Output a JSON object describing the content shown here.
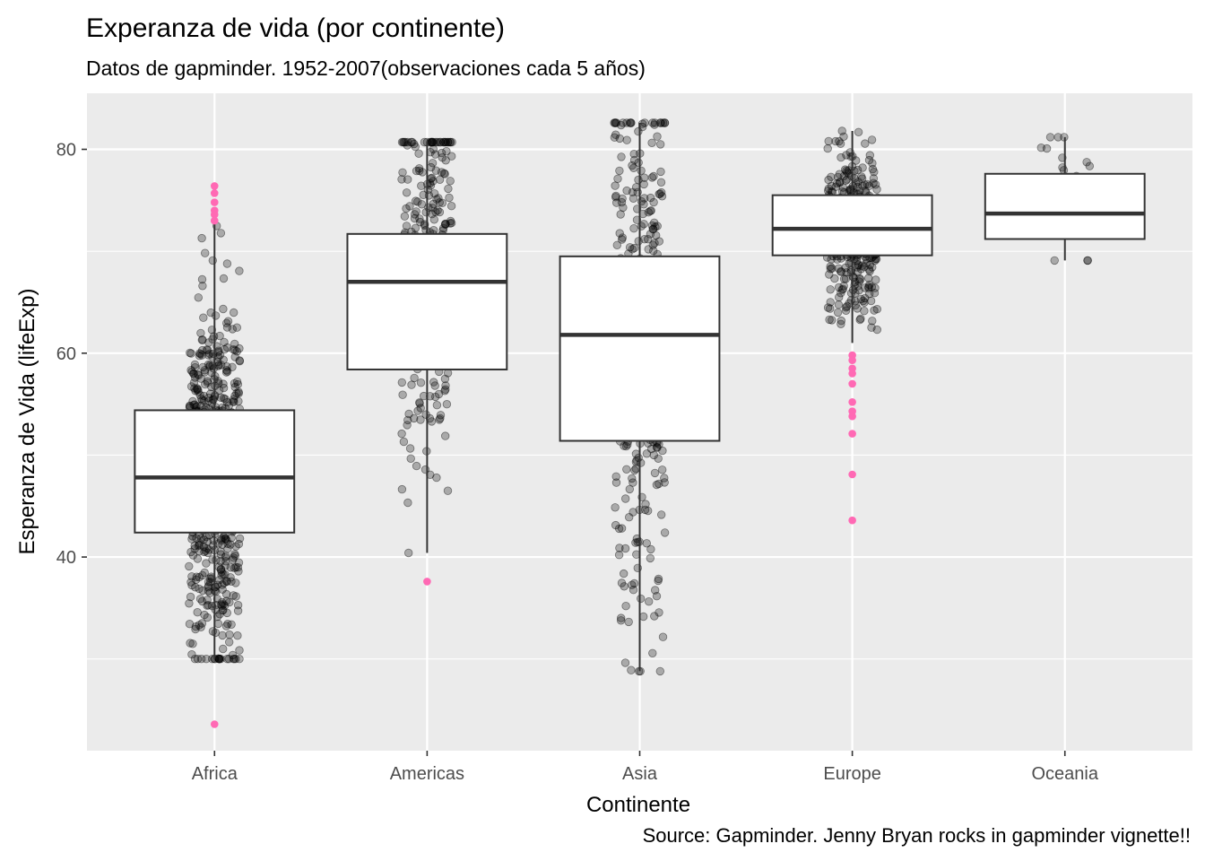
{
  "chart_data": {
    "type": "boxplot",
    "title": "Experanza de vida (por continente)",
    "subtitle": "Datos de gapminder. 1952-2007(observaciones cada 5 años)",
    "xlabel": "Continente",
    "ylabel": "Esperanza de Vida (lifeExp)",
    "caption": "Source: Gapminder. Jenny Bryan rocks in gapminder vignette!!",
    "categories": [
      "Africa",
      "Americas",
      "Asia",
      "Europe",
      "Oceania"
    ],
    "ylim": [
      21,
      85.5
    ],
    "yticks": [
      40,
      60,
      80
    ],
    "grid": true,
    "colors": {
      "panel_bg": "#ebebeb",
      "grid": "#ffffff",
      "box_fill": "#ffffff",
      "box_line": "#333333",
      "points": "#000000",
      "outliers": "#ff69b4"
    },
    "boxes": [
      {
        "category": "Africa",
        "q1": 42.4,
        "median": 47.8,
        "q3": 54.4,
        "whisker_low": 30.0,
        "whisker_high": 72.8,
        "n_points": 624
      },
      {
        "category": "Americas",
        "q1": 58.4,
        "median": 67.0,
        "q3": 71.7,
        "whisker_low": 40.4,
        "whisker_high": 80.7,
        "n_points": 300
      },
      {
        "category": "Asia",
        "q1": 51.4,
        "median": 61.8,
        "q3": 69.5,
        "whisker_low": 28.8,
        "whisker_high": 82.6,
        "n_points": 396
      },
      {
        "category": "Europe",
        "q1": 69.6,
        "median": 72.2,
        "q3": 75.5,
        "whisker_low": 61.0,
        "whisker_high": 81.8,
        "n_points": 360
      },
      {
        "category": "Oceania",
        "q1": 71.2,
        "median": 73.7,
        "q3": 77.6,
        "whisker_low": 69.1,
        "whisker_high": 81.2,
        "n_points": 24
      }
    ],
    "outliers": [
      {
        "category": "Africa",
        "values": [
          76.4,
          75.7,
          74.8,
          74.0,
          73.6,
          73.0,
          23.6
        ]
      },
      {
        "category": "Americas",
        "values": [
          37.6
        ]
      },
      {
        "category": "Europe",
        "values": [
          59.8,
          59.3,
          58.5,
          58.0,
          57.0,
          55.2,
          54.3,
          53.8,
          52.1,
          48.1,
          43.6
        ]
      }
    ]
  }
}
